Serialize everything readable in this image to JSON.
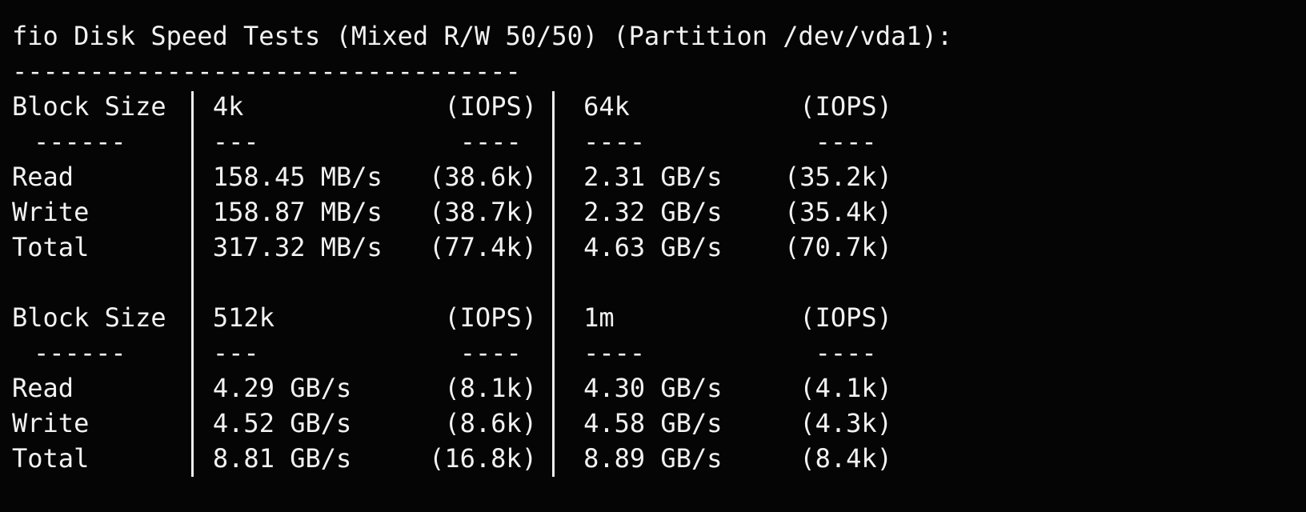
{
  "title": "fio Disk Speed Tests (Mixed R/W 50/50) (Partition /dev/vda1):",
  "rule": "---------------------------------",
  "blocks": [
    {
      "header": [
        "Block Size",
        "4k",
        "(IOPS)",
        "64k",
        "(IOPS)"
      ],
      "separator": [
        "------",
        "---",
        "----",
        "----",
        "----"
      ],
      "rows": [
        [
          "Read",
          "158.45 MB/s",
          "(38.6k)",
          "2.31 GB/s",
          "(35.2k)"
        ],
        [
          "Write",
          "158.87 MB/s",
          "(38.7k)",
          "2.32 GB/s",
          "(35.4k)"
        ],
        [
          "Total",
          "317.32 MB/s",
          "(77.4k)",
          "4.63 GB/s",
          "(70.7k)"
        ]
      ]
    },
    {
      "header": [
        "Block Size",
        "512k",
        "(IOPS)",
        "1m",
        "(IOPS)"
      ],
      "separator": [
        "------",
        "---",
        "----",
        "----",
        "----"
      ],
      "rows": [
        [
          "Read",
          "4.29 GB/s",
          "(8.1k)",
          "4.30 GB/s",
          "(4.1k)"
        ],
        [
          "Write",
          "4.52 GB/s",
          "(8.6k)",
          "4.58 GB/s",
          "(4.3k)"
        ],
        [
          "Total",
          "8.81 GB/s",
          "(16.8k)",
          "8.89 GB/s",
          "(8.4k)"
        ]
      ]
    }
  ]
}
